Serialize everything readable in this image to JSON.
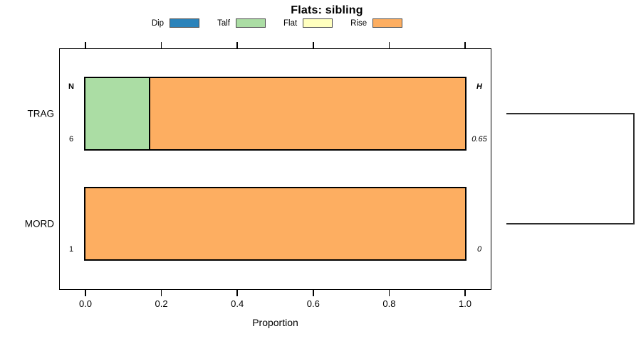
{
  "title": "Flats: sibling",
  "chart_data": {
    "type": "bar",
    "orientation": "horizontal",
    "stacked": true,
    "title": "Flats: sibling",
    "xlabel": "Proportion",
    "xlim": [
      0,
      1
    ],
    "xticks": [
      "0.0",
      "0.2",
      "0.4",
      "0.6",
      "0.8",
      "1.0"
    ],
    "grid": false,
    "legend_position": "top",
    "legend": [
      {
        "label": "Dip",
        "color": "#2b83ba"
      },
      {
        "label": "Talf",
        "color": "#abdda4"
      },
      {
        "label": "Flat",
        "color": "#ffffbf"
      },
      {
        "label": "Rise",
        "color": "#fdae61"
      }
    ],
    "annotation_headers": {
      "left": "N",
      "right": "H"
    },
    "rows": [
      {
        "label": "TRAG",
        "n": "6",
        "h": "0.65",
        "segments": [
          {
            "category": "Talf",
            "value": 0.1667
          },
          {
            "category": "Rise",
            "value": 0.8333
          }
        ]
      },
      {
        "label": "MORD",
        "n": "1",
        "h": "0",
        "segments": [
          {
            "category": "Rise",
            "value": 1.0
          }
        ]
      }
    ],
    "right_bracket": {
      "type": "dendrogram-bracket",
      "connects": [
        "TRAG",
        "MORD"
      ]
    },
    "colors": {
      "bar_border": "#000000",
      "axis": "#000000",
      "dendrogram_line": "#2e2e2e",
      "background": "#ffffff"
    }
  }
}
